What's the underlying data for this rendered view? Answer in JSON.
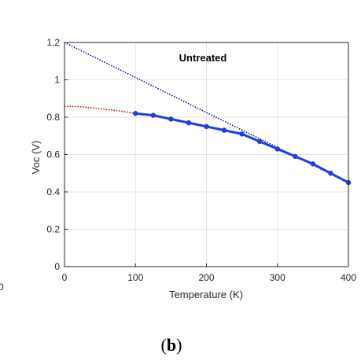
{
  "chart_data": {
    "type": "line",
    "xlabel": "Temperature (K)",
    "ylabel": "Voc (V)",
    "xlim": [
      0,
      400
    ],
    "ylim": [
      0,
      1.2
    ],
    "x_ticks": [
      "0",
      "100",
      "200",
      "300",
      "400"
    ],
    "y_ticks": [
      "0",
      "0.2",
      "0.4",
      "0.6",
      "0.8",
      "1",
      "1.2"
    ],
    "grid": true,
    "annotation": "Untreated",
    "panel_label": {
      "open": "(",
      "letter": "b",
      "close": ")"
    },
    "neighbor_fragment": "0",
    "series": [
      {
        "style": "solid line with markers",
        "color": "#1f3fe0",
        "x": [
          100,
          125,
          150,
          175,
          200,
          225,
          250,
          275,
          300,
          325,
          350,
          375,
          400
        ],
        "y": [
          0.82,
          0.81,
          0.79,
          0.77,
          0.75,
          0.73,
          0.71,
          0.67,
          0.63,
          0.59,
          0.55,
          0.5,
          0.45
        ]
      },
      {
        "style": "dotted fit",
        "color": "#0a0aa0",
        "x": [
          0,
          400
        ],
        "y": [
          1.2,
          0.45
        ]
      },
      {
        "style": "dotted extrapolation",
        "color": "#cc0000",
        "x": [
          0,
          25,
          50,
          75,
          100
        ],
        "y": [
          0.86,
          0.855,
          0.845,
          0.835,
          0.82
        ]
      }
    ]
  }
}
